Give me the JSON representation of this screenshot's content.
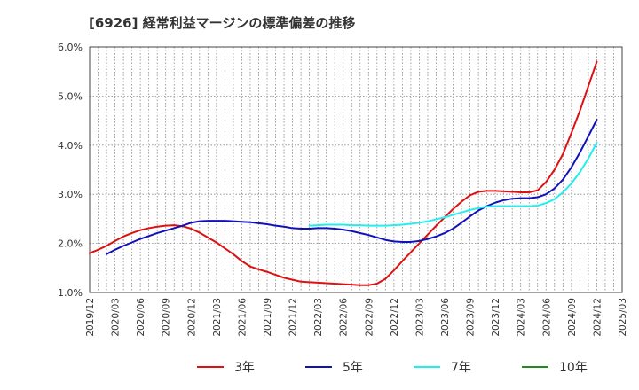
{
  "chart_data": {
    "type": "line",
    "title": "[6926]  経常利益マージンの標準偏差の推移",
    "xlabel": "",
    "ylabel": "",
    "ylim": [
      1.0,
      6.0
    ],
    "y_ticks": [
      1.0,
      2.0,
      3.0,
      4.0,
      5.0,
      6.0
    ],
    "y_tick_labels": [
      "1.0%",
      "2.0%",
      "3.0%",
      "4.0%",
      "5.0%",
      "6.0%"
    ],
    "x_tick_labels": [
      "2019/12",
      "2020/03",
      "2020/06",
      "2020/09",
      "2020/12",
      "2021/03",
      "2021/06",
      "2021/09",
      "2021/12",
      "2022/03",
      "2022/06",
      "2022/09",
      "2022/12",
      "2023/03",
      "2023/06",
      "2023/09",
      "2023/12",
      "2024/03",
      "2024/06",
      "2024/09",
      "2024/12",
      "2025/03"
    ],
    "grid": true,
    "legend_position": "bottom",
    "series": [
      {
        "name": "3年",
        "color": "#dd1111",
        "x": [
          "2019/12",
          "2020/01",
          "2020/02",
          "2020/03",
          "2020/04",
          "2020/05",
          "2020/06",
          "2020/07",
          "2020/08",
          "2020/09",
          "2020/10",
          "2020/11",
          "2020/12",
          "2021/01",
          "2021/02",
          "2021/03",
          "2021/04",
          "2021/05",
          "2021/06",
          "2021/07",
          "2021/08",
          "2021/09",
          "2021/10",
          "2021/11",
          "2021/12",
          "2022/01",
          "2022/02",
          "2022/03",
          "2022/04",
          "2022/05",
          "2022/06",
          "2022/07",
          "2022/08",
          "2022/09",
          "2022/10",
          "2022/11",
          "2022/12",
          "2023/01",
          "2023/02",
          "2023/03",
          "2023/04",
          "2023/05",
          "2023/06",
          "2023/07",
          "2023/08",
          "2023/09",
          "2023/10",
          "2023/11",
          "2023/12",
          "2024/01",
          "2024/02",
          "2024/03",
          "2024/04",
          "2024/05",
          "2024/06",
          "2024/07",
          "2024/08",
          "2024/09",
          "2024/10",
          "2024/11",
          "2024/12"
        ],
        "values": [
          1.8,
          1.87,
          1.95,
          2.05,
          2.14,
          2.21,
          2.27,
          2.31,
          2.34,
          2.36,
          2.37,
          2.35,
          2.3,
          2.22,
          2.12,
          2.02,
          1.9,
          1.78,
          1.64,
          1.53,
          1.47,
          1.42,
          1.36,
          1.3,
          1.26,
          1.22,
          1.21,
          1.2,
          1.19,
          1.18,
          1.17,
          1.16,
          1.15,
          1.15,
          1.18,
          1.28,
          1.45,
          1.64,
          1.82,
          2.0,
          2.18,
          2.36,
          2.53,
          2.7,
          2.85,
          2.98,
          3.05,
          3.07,
          3.07,
          3.06,
          3.05,
          3.04,
          3.04,
          3.08,
          3.25,
          3.5,
          3.82,
          4.25,
          4.7,
          5.2,
          5.7
        ]
      },
      {
        "name": "5年",
        "color": "#1111bb",
        "x": [
          "2020/02",
          "2020/03",
          "2020/04",
          "2020/05",
          "2020/06",
          "2020/07",
          "2020/08",
          "2020/09",
          "2020/10",
          "2020/11",
          "2020/12",
          "2021/01",
          "2021/02",
          "2021/03",
          "2021/04",
          "2021/05",
          "2021/06",
          "2021/07",
          "2021/08",
          "2021/09",
          "2021/10",
          "2021/11",
          "2021/12",
          "2022/01",
          "2022/02",
          "2022/03",
          "2022/04",
          "2022/05",
          "2022/06",
          "2022/07",
          "2022/08",
          "2022/09",
          "2022/10",
          "2022/11",
          "2022/12",
          "2023/01",
          "2023/02",
          "2023/03",
          "2023/04",
          "2023/05",
          "2023/06",
          "2023/07",
          "2023/08",
          "2023/09",
          "2023/10",
          "2023/11",
          "2023/12",
          "2024/01",
          "2024/02",
          "2024/03",
          "2024/04",
          "2024/05",
          "2024/06",
          "2024/07",
          "2024/08",
          "2024/09",
          "2024/10",
          "2024/11",
          "2024/12"
        ],
        "values": [
          1.78,
          1.87,
          1.95,
          2.02,
          2.09,
          2.15,
          2.21,
          2.26,
          2.31,
          2.36,
          2.42,
          2.45,
          2.46,
          2.46,
          2.46,
          2.45,
          2.44,
          2.43,
          2.41,
          2.39,
          2.36,
          2.34,
          2.31,
          2.3,
          2.3,
          2.31,
          2.31,
          2.3,
          2.28,
          2.25,
          2.21,
          2.17,
          2.12,
          2.07,
          2.04,
          2.03,
          2.03,
          2.05,
          2.09,
          2.14,
          2.21,
          2.3,
          2.42,
          2.55,
          2.67,
          2.76,
          2.83,
          2.88,
          2.91,
          2.92,
          2.92,
          2.94,
          3.0,
          3.12,
          3.3,
          3.55,
          3.85,
          4.18,
          4.52
        ]
      },
      {
        "name": "7年",
        "color": "#22eeee",
        "x": [
          "2022/02",
          "2022/03",
          "2022/04",
          "2022/05",
          "2022/06",
          "2022/07",
          "2022/08",
          "2022/09",
          "2022/10",
          "2022/11",
          "2022/12",
          "2023/01",
          "2023/02",
          "2023/03",
          "2023/04",
          "2023/05",
          "2023/06",
          "2023/07",
          "2023/08",
          "2023/09",
          "2023/10",
          "2023/11",
          "2023/12",
          "2024/01",
          "2024/02",
          "2024/03",
          "2024/04",
          "2024/05",
          "2024/06",
          "2024/07",
          "2024/08",
          "2024/09",
          "2024/10",
          "2024/11",
          "2024/12"
        ],
        "values": [
          2.36,
          2.37,
          2.38,
          2.38,
          2.38,
          2.37,
          2.37,
          2.36,
          2.36,
          2.36,
          2.37,
          2.38,
          2.4,
          2.42,
          2.45,
          2.49,
          2.53,
          2.58,
          2.63,
          2.68,
          2.72,
          2.75,
          2.76,
          2.76,
          2.76,
          2.76,
          2.76,
          2.77,
          2.82,
          2.9,
          3.04,
          3.22,
          3.45,
          3.73,
          4.05
        ]
      },
      {
        "name": "10年",
        "color": "#228822",
        "x": [],
        "values": []
      }
    ]
  }
}
